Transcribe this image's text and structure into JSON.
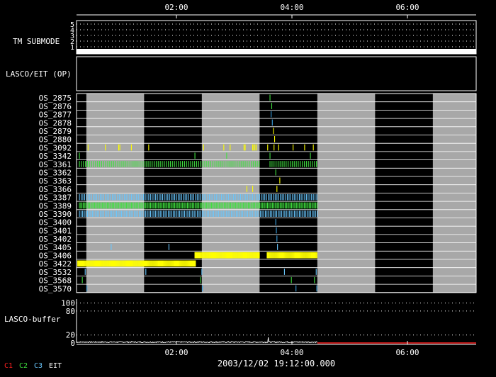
{
  "chart_data": {
    "type": "timeline",
    "x_range_hours": [
      0,
      6.92
    ],
    "time_ticks": [
      {
        "label": "02:00",
        "hour": 1.73
      },
      {
        "label": "04:00",
        "hour": 3.73
      },
      {
        "label": "06:00",
        "hour": 5.73
      }
    ],
    "tm_submode": {
      "title": "TM SUBMODE",
      "levels": [
        "5",
        "4",
        "3",
        "2",
        "1"
      ],
      "active_level": "1"
    },
    "lasco_eit_panel": {
      "title": "LASCO/EIT (OP)"
    },
    "gray_periods_hours": [
      [
        0.17,
        1.17
      ],
      [
        2.17,
        3.17
      ],
      [
        4.17,
        5.17
      ],
      [
        6.17,
        6.92
      ]
    ],
    "os_rows": [
      {
        "label": "OS_2875",
        "color": "#3fe03f",
        "events": [
          3.35
        ]
      },
      {
        "label": "OS_2876",
        "color": "#3fe03f",
        "events": [
          3.38
        ]
      },
      {
        "label": "OS_2877",
        "color": "#3aa0e0",
        "events": [
          3.37
        ]
      },
      {
        "label": "OS_2878",
        "color": "#3aa0e0",
        "events": [
          3.39
        ]
      },
      {
        "label": "OS_2879",
        "color": "#ffff00",
        "events": [
          3.41
        ]
      },
      {
        "label": "OS_2880",
        "color": "#ffff00",
        "events": [
          3.43
        ]
      },
      {
        "label": "OS_3092",
        "color": "#ffff00",
        "events": [
          0.2,
          0.5,
          0.73,
          0.75,
          0.95,
          1.25,
          2.2,
          2.55,
          2.66,
          2.9,
          2.92,
          3.05,
          3.07,
          3.09,
          3.12,
          3.31,
          3.42,
          3.5,
          3.75,
          3.95,
          4.1
        ]
      },
      {
        "label": "OS_3342",
        "color": "#3fe03f",
        "events": [
          0.05,
          2.05,
          2.6,
          3.35,
          4.05
        ]
      },
      {
        "label": "OS_3361",
        "color": "#3fe03f",
        "dense": [
          [
            0.05,
            3.17
          ],
          [
            3.35,
            4.17
          ]
        ],
        "step": 0.035
      },
      {
        "label": "OS_3362",
        "color": "#3fe03f",
        "events": [
          3.45
        ]
      },
      {
        "label": "OS_3363",
        "color": "#ffff00",
        "events": [
          3.52
        ]
      },
      {
        "label": "OS_3366",
        "color": "#ffff00",
        "events": [
          2.95,
          3.05,
          3.47
        ]
      },
      {
        "label": "OS_3387",
        "color": "#6ac8ff",
        "dense": [
          [
            0.05,
            4.17
          ]
        ],
        "step": 0.03
      },
      {
        "label": "OS_3389",
        "color": "#3fe03f",
        "dense": [
          [
            0.05,
            4.17
          ]
        ],
        "step": 0.022
      },
      {
        "label": "OS_3390",
        "color": "#6ac8ff",
        "dense": [
          [
            0.05,
            4.17
          ]
        ],
        "step": 0.028
      },
      {
        "label": "OS_3400",
        "color": "#3aa0e0",
        "events": [
          3.45
        ]
      },
      {
        "label": "OS_3401",
        "color": "#3aa0e0",
        "events": [
          3.46
        ]
      },
      {
        "label": "OS_3402",
        "color": "#3aa0e0",
        "events": [
          3.47
        ]
      },
      {
        "label": "OS_3405",
        "color": "#6ac8ff",
        "events": [
          0.6,
          1.6,
          3.48
        ]
      },
      {
        "label": "OS_3406",
        "color": "#ffff00",
        "dense": [
          [
            2.05,
            3.17
          ],
          [
            3.3,
            4.17
          ]
        ],
        "step": 0.012
      },
      {
        "label": "OS_3422",
        "color": "#ffff00",
        "dense": [
          [
            0.02,
            2.07
          ]
        ],
        "step": 0.012
      },
      {
        "label": "OS_3532",
        "color": "#6ac8ff",
        "events": [
          0.15,
          1.2,
          2.17,
          3.6,
          4.15
        ]
      },
      {
        "label": "OS_3568",
        "color": "#3fe03f",
        "events": [
          0.1,
          2.15,
          3.72,
          4.12
        ]
      },
      {
        "label": "OS_3570",
        "color": "#3aa0e0",
        "events": [
          0.18,
          2.18,
          3.8,
          4.16
        ]
      }
    ],
    "lasco_buffer": {
      "title": "LASCO-buffer",
      "y_ticks": [
        0,
        20,
        80,
        100
      ],
      "y_range": [
        0,
        110
      ],
      "data_end_hours": 4.17,
      "spike_at_hours": 3.32,
      "spike_value": 14,
      "base_value": 2.5
    },
    "date_time": "2003/12/02 19:12:00.000",
    "legend": [
      {
        "label": "C1",
        "color": "#ff2020"
      },
      {
        "label": "C2",
        "color": "#3fe03f"
      },
      {
        "label": "C3",
        "color": "#6ac8ff"
      },
      {
        "label": "EIT",
        "color": "#ffffff"
      }
    ]
  }
}
